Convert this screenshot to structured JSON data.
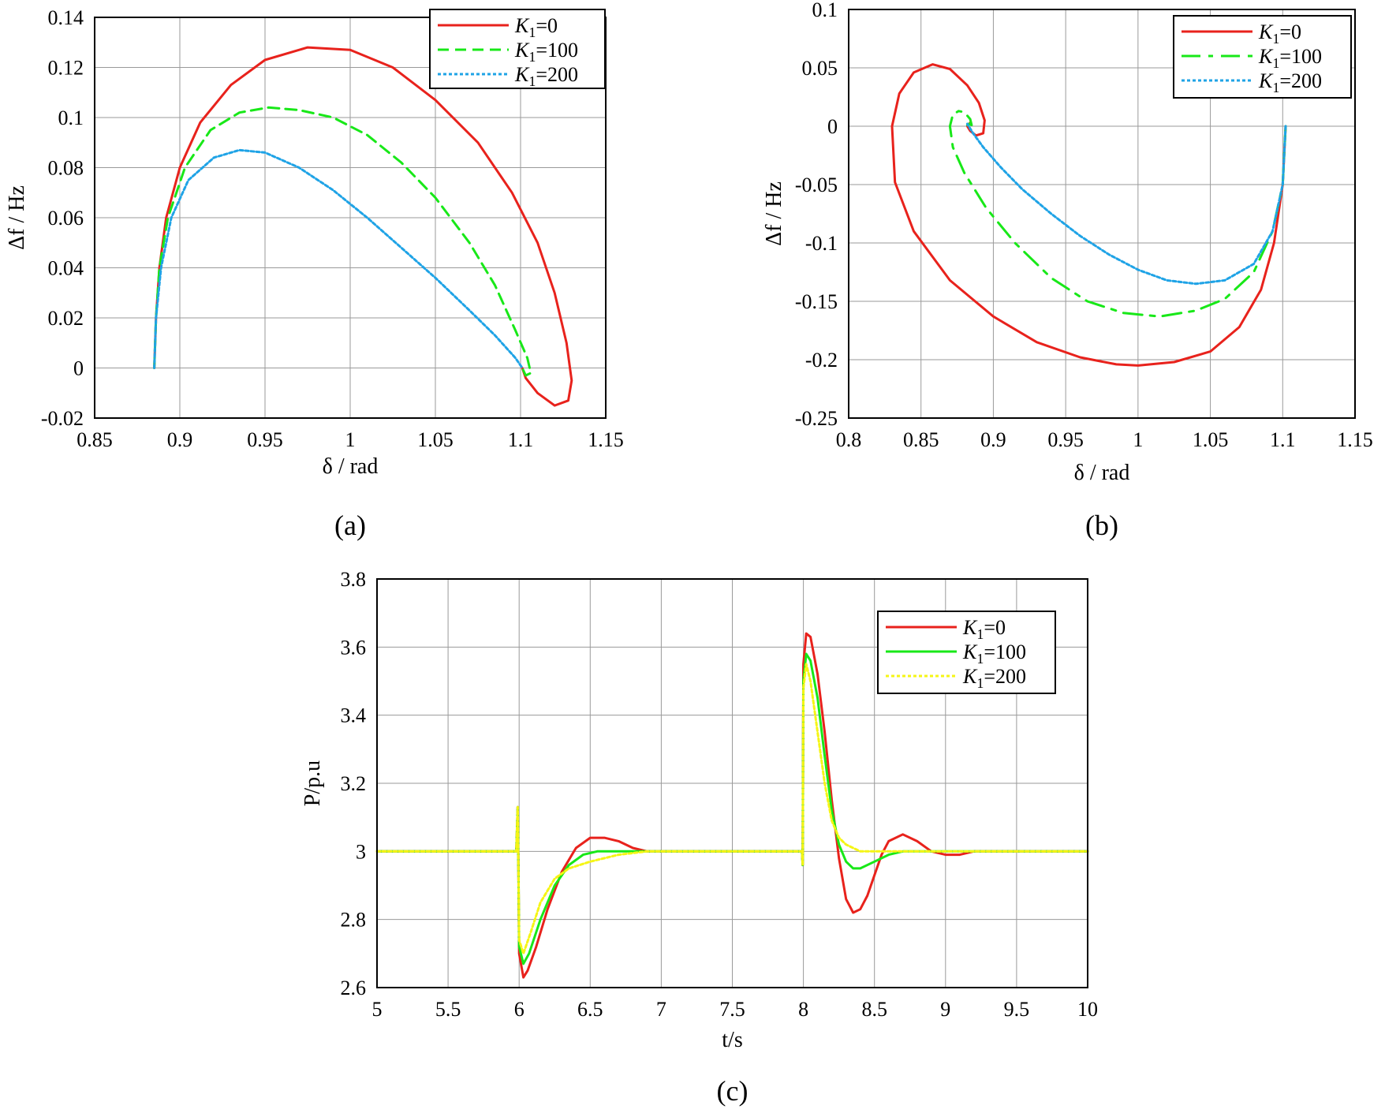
{
  "chart_data": [
    {
      "type": "line",
      "panel": "a",
      "caption": "(a)",
      "xlabel": "δ / rad",
      "ylabel": "Δf / Hz",
      "xlim": [
        0.85,
        1.15
      ],
      "ylim": [
        -0.02,
        0.14
      ],
      "xticks": [
        0.85,
        0.9,
        0.95,
        1,
        1.05,
        1.1,
        1.15
      ],
      "yticks": [
        -0.02,
        0,
        0.02,
        0.04,
        0.06,
        0.08,
        0.1,
        0.12,
        0.14
      ],
      "xtick_labels": [
        "0.85",
        "0.9",
        "0.95",
        "1",
        "1.05",
        "1.1",
        "1.15"
      ],
      "ytick_labels": [
        "-0.02",
        "0",
        "0.02",
        "0.04",
        "0.06",
        "0.08",
        "0.1",
        "0.12",
        "0.14"
      ],
      "grid": true,
      "legend_position": "top-right",
      "series": [
        {
          "name": "K1=0",
          "label_main": "K",
          "label_sub": "1",
          "label_rest": "=0",
          "color": "#e8221c",
          "dash": "solid",
          "x": [
            0.885,
            0.886,
            0.888,
            0.892,
            0.9,
            0.912,
            0.93,
            0.95,
            0.975,
            1.0,
            1.025,
            1.05,
            1.075,
            1.095,
            1.11,
            1.12,
            1.127,
            1.13,
            1.128,
            1.12,
            1.11,
            1.103,
            1.101
          ],
          "y": [
            0.0,
            0.02,
            0.04,
            0.06,
            0.08,
            0.098,
            0.113,
            0.123,
            0.128,
            0.127,
            0.12,
            0.107,
            0.09,
            0.07,
            0.05,
            0.03,
            0.01,
            -0.005,
            -0.013,
            -0.015,
            -0.01,
            -0.004,
            0.0
          ]
        },
        {
          "name": "K1=100",
          "label_main": "K",
          "label_sub": "1",
          "label_rest": "=100",
          "color": "#18e818",
          "dash": "14,8",
          "x": [
            0.885,
            0.886,
            0.888,
            0.893,
            0.903,
            0.918,
            0.935,
            0.952,
            0.97,
            0.99,
            1.01,
            1.03,
            1.05,
            1.07,
            1.085,
            1.097,
            1.104,
            1.106,
            1.103,
            1.101
          ],
          "y": [
            0.0,
            0.02,
            0.04,
            0.06,
            0.08,
            0.095,
            0.102,
            0.104,
            0.103,
            0.1,
            0.093,
            0.082,
            0.068,
            0.05,
            0.033,
            0.015,
            0.004,
            -0.002,
            -0.003,
            0.0
          ]
        },
        {
          "name": "K1=200",
          "label_main": "K",
          "label_sub": "1",
          "label_rest": "=200",
          "color": "#1fa3e6",
          "dash": "4,3",
          "x": [
            0.885,
            0.886,
            0.889,
            0.895,
            0.905,
            0.92,
            0.935,
            0.95,
            0.97,
            0.99,
            1.01,
            1.03,
            1.05,
            1.07,
            1.085,
            1.097,
            1.101
          ],
          "y": [
            0.0,
            0.02,
            0.04,
            0.06,
            0.075,
            0.084,
            0.087,
            0.086,
            0.08,
            0.071,
            0.06,
            0.048,
            0.036,
            0.023,
            0.013,
            0.004,
            0.0
          ]
        }
      ]
    },
    {
      "type": "line",
      "panel": "b",
      "caption": "(b)",
      "xlabel": "δ / rad",
      "ylabel": "Δf / Hz",
      "xlim": [
        0.8,
        1.15
      ],
      "ylim": [
        -0.25,
        0.1
      ],
      "xticks": [
        0.8,
        0.85,
        0.9,
        0.95,
        1,
        1.05,
        1.1,
        1.15
      ],
      "yticks": [
        -0.25,
        -0.2,
        -0.15,
        -0.1,
        -0.05,
        0,
        0.05,
        0.1
      ],
      "xtick_labels": [
        "0.8",
        "0.85",
        "0.9",
        "0.95",
        "1",
        "1.05",
        "1.1",
        "1.15"
      ],
      "ytick_labels": [
        "-0.25",
        "-0.2",
        "-0.15",
        "-0.1",
        "-0.05",
        "0",
        "0.05",
        "0.1"
      ],
      "grid": true,
      "legend_position": "top-right",
      "series": [
        {
          "name": "K1=0",
          "label_main": "K",
          "label_sub": "1",
          "label_rest": "=0",
          "color": "#e8221c",
          "dash": "solid",
          "x": [
            1.102,
            1.1,
            1.094,
            1.085,
            1.07,
            1.05,
            1.025,
            1.0,
            0.985,
            0.96,
            0.93,
            0.9,
            0.87,
            0.845,
            0.832,
            0.83,
            0.835,
            0.845,
            0.858,
            0.87,
            0.882,
            0.89,
            0.894,
            0.893,
            0.888,
            0.884,
            0.882,
            0.884
          ],
          "y": [
            0.0,
            -0.05,
            -0.1,
            -0.14,
            -0.172,
            -0.193,
            -0.202,
            -0.205,
            -0.204,
            -0.198,
            -0.185,
            -0.163,
            -0.132,
            -0.09,
            -0.048,
            0.0,
            0.028,
            0.046,
            0.053,
            0.049,
            0.035,
            0.02,
            0.005,
            -0.006,
            -0.008,
            -0.004,
            0.0,
            0.003
          ]
        },
        {
          "name": "K1=100",
          "label_main": "K",
          "label_sub": "1",
          "label_rest": "=100",
          "color": "#18e818",
          "dash": "24,10,6,10",
          "x": [
            1.102,
            1.1,
            1.093,
            1.08,
            1.06,
            1.04,
            1.015,
            0.99,
            0.965,
            0.94,
            0.915,
            0.895,
            0.88,
            0.872,
            0.87,
            0.872,
            0.876,
            0.88,
            0.884,
            0.885,
            0.883,
            0.882
          ],
          "y": [
            0.0,
            -0.05,
            -0.09,
            -0.125,
            -0.148,
            -0.158,
            -0.163,
            -0.16,
            -0.15,
            -0.13,
            -0.1,
            -0.07,
            -0.04,
            -0.018,
            0.0,
            0.01,
            0.013,
            0.012,
            0.006,
            0.001,
            0.002,
            0.001
          ]
        },
        {
          "name": "K1=200",
          "label_main": "K",
          "label_sub": "1",
          "label_rest": "=200",
          "color": "#1fa3e6",
          "dash": "4,3",
          "x": [
            1.102,
            1.1,
            1.093,
            1.08,
            1.06,
            1.04,
            1.02,
            1.0,
            0.98,
            0.96,
            0.94,
            0.92,
            0.905,
            0.893,
            0.886,
            0.883,
            0.882
          ],
          "y": [
            0.0,
            -0.05,
            -0.09,
            -0.118,
            -0.132,
            -0.135,
            -0.132,
            -0.123,
            -0.11,
            -0.094,
            -0.075,
            -0.054,
            -0.035,
            -0.018,
            -0.006,
            0.0,
            0.002
          ]
        }
      ]
    },
    {
      "type": "line",
      "panel": "c",
      "caption": "(c)",
      "xlabel": "t/s",
      "ylabel": "P/p.u",
      "xlim": [
        5,
        10
      ],
      "ylim": [
        2.6,
        3.8
      ],
      "xticks": [
        5,
        5.5,
        6,
        6.5,
        7,
        7.5,
        8,
        8.5,
        9,
        9.5,
        10
      ],
      "yticks": [
        2.6,
        2.8,
        3,
        3.2,
        3.4,
        3.6,
        3.8
      ],
      "xtick_labels": [
        "5",
        "5.5",
        "6",
        "6.5",
        "7",
        "7.5",
        "8",
        "8.5",
        "9",
        "9.5",
        "10"
      ],
      "ytick_labels": [
        "2.6",
        "2.8",
        "3",
        "3.2",
        "3.4",
        "3.6",
        "3.8"
      ],
      "grid": true,
      "legend_position": "top-right",
      "series": [
        {
          "name": "K1=0",
          "label_main": "K",
          "label_sub": "1",
          "label_rest": "=0",
          "color": "#e8221c",
          "dash": "solid",
          "x": [
            5,
            5.98,
            5.99,
            5.995,
            6.0,
            6.03,
            6.06,
            6.12,
            6.2,
            6.3,
            6.4,
            6.5,
            6.6,
            6.7,
            6.8,
            6.9,
            7.0,
            7.5,
            7.99,
            7.995,
            8.0,
            8.02,
            8.05,
            8.1,
            8.15,
            8.2,
            8.25,
            8.3,
            8.35,
            8.4,
            8.45,
            8.5,
            8.55,
            8.6,
            8.7,
            8.8,
            8.9,
            9.0,
            9.1,
            9.2,
            10
          ],
          "y": [
            3.0,
            3.0,
            3.13,
            2.95,
            2.7,
            2.63,
            2.65,
            2.72,
            2.83,
            2.94,
            3.01,
            3.04,
            3.04,
            3.03,
            3.01,
            3.0,
            3.0,
            3.0,
            3.0,
            2.96,
            3.55,
            3.64,
            3.63,
            3.52,
            3.35,
            3.15,
            2.98,
            2.86,
            2.82,
            2.83,
            2.87,
            2.93,
            2.99,
            3.03,
            3.05,
            3.03,
            3.0,
            2.99,
            2.99,
            3.0,
            3.0
          ]
        },
        {
          "name": "K1=100",
          "label_main": "K",
          "label_sub": "1",
          "label_rest": "=100",
          "color": "#18e818",
          "dash": "solid",
          "x": [
            5,
            5.98,
            5.99,
            5.995,
            6.0,
            6.03,
            6.07,
            6.15,
            6.25,
            6.35,
            6.45,
            6.55,
            6.7,
            6.85,
            7.0,
            7.5,
            7.99,
            7.995,
            8.0,
            8.02,
            8.05,
            8.1,
            8.15,
            8.2,
            8.25,
            8.3,
            8.35,
            8.4,
            8.5,
            8.6,
            8.7,
            8.8,
            8.9,
            9.0,
            10
          ],
          "y": [
            3.0,
            3.0,
            3.13,
            2.95,
            2.72,
            2.67,
            2.7,
            2.8,
            2.9,
            2.96,
            2.99,
            3.0,
            3.0,
            3.0,
            3.0,
            3.0,
            3.0,
            2.96,
            3.5,
            3.58,
            3.56,
            3.45,
            3.28,
            3.12,
            3.02,
            2.97,
            2.95,
            2.95,
            2.97,
            2.99,
            3.0,
            3.0,
            3.0,
            3.0,
            3.0
          ]
        },
        {
          "name": "K1=200",
          "label_main": "K",
          "label_sub": "1",
          "label_rest": "=200",
          "color": "#f5f515",
          "dash": "4,3",
          "x": [
            5,
            5.98,
            5.99,
            5.995,
            6.0,
            6.03,
            6.08,
            6.15,
            6.25,
            6.35,
            6.5,
            6.7,
            6.9,
            7.0,
            7.5,
            7.99,
            7.995,
            8.0,
            8.02,
            8.05,
            8.1,
            8.15,
            8.2,
            8.25,
            8.3,
            8.35,
            8.4,
            8.5,
            8.6,
            9.0,
            10
          ],
          "y": [
            3.0,
            3.0,
            3.13,
            2.95,
            2.74,
            2.7,
            2.76,
            2.85,
            2.92,
            2.95,
            2.97,
            2.99,
            3.0,
            3.0,
            3.0,
            3.0,
            2.96,
            3.48,
            3.55,
            3.5,
            3.35,
            3.2,
            3.09,
            3.04,
            3.02,
            3.01,
            3.0,
            3.0,
            3.0,
            3.0,
            3.0
          ]
        }
      ]
    }
  ]
}
